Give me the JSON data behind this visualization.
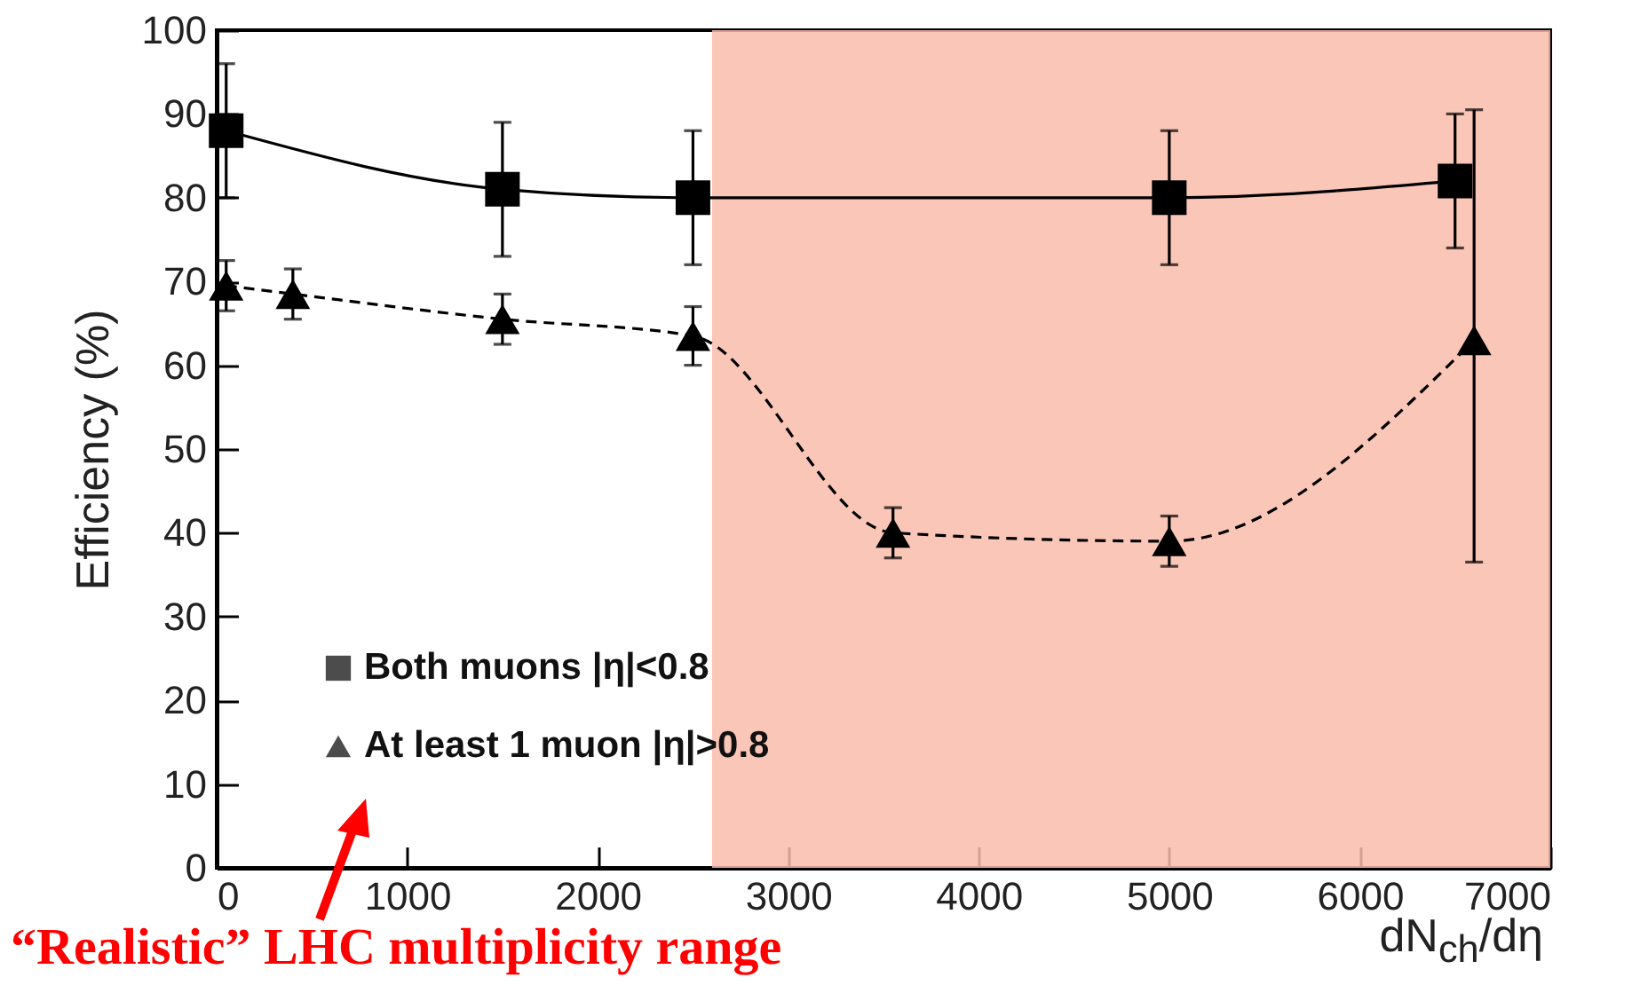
{
  "chart_data": {
    "type": "line",
    "xlabel": "dN$_{ch}$/dη",
    "ylabel": "Efficiency (%)",
    "xlim": [
      0,
      7000
    ],
    "xticks": [
      0,
      1000,
      2000,
      3000,
      4000,
      5000,
      6000,
      7000
    ],
    "ylim": [
      0,
      100
    ],
    "yticks": [
      0,
      10,
      20,
      30,
      40,
      50,
      60,
      70,
      80,
      90,
      100
    ],
    "legend": "bottom left",
    "grid": false,
    "series": [
      {
        "name": "Both muons |η|<0.8",
        "color": "#000000",
        "marker": "square",
        "line_style": "solid",
        "x": [
          50,
          1500,
          2500,
          5000,
          6500
        ],
        "values": [
          88,
          81,
          80,
          80,
          82
        ],
        "errors": [
          8,
          8,
          8,
          8,
          8
        ]
      },
      {
        "name": "At least 1 muon |η|>0.8",
        "color": "#000000",
        "marker": "triangle",
        "line_style": "dashed",
        "x": [
          50,
          400,
          1500,
          2500,
          3550,
          5000,
          6600
        ],
        "values": [
          69.5,
          68.5,
          65.5,
          63.5,
          40,
          39,
          63
        ],
        "errors": [
          3,
          3,
          3,
          3.5,
          3,
          3,
          [
            36.5,
            90.5
          ]
        ]
      }
    ],
    "bands": [
      {
        "axis": "x",
        "from": 2600,
        "to": 7000,
        "color": "#f9bcaa"
      }
    ],
    "annotations": [
      "“Realistic” LHC multiplicity range"
    ]
  }
}
